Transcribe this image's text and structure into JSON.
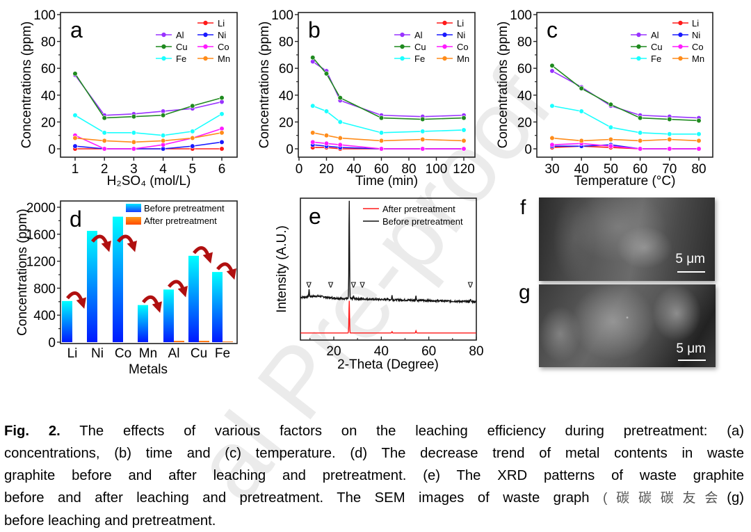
{
  "watermark": "al Pre-proof",
  "legend_series": [
    {
      "name": "Li",
      "color": "#ff1a1a"
    },
    {
      "name": "Ni",
      "color": "#1a1aff"
    },
    {
      "name": "Co",
      "color": "#ff1aff"
    },
    {
      "name": "Mn",
      "color": "#ff8c1a"
    },
    {
      "name": "Al",
      "color": "#9933ff"
    },
    {
      "name": "Cu",
      "color": "#1f8a1f"
    },
    {
      "name": "Fe",
      "color": "#1affff"
    }
  ],
  "chart_data": [
    {
      "id": "a",
      "panel_label": "a",
      "type": "line",
      "xlabel": "H₂SO₄ (mol/L)",
      "ylabel": "Concentrations (ppm)",
      "x": [
        1,
        2,
        3,
        4,
        5,
        6
      ],
      "xticks": [
        "1",
        "2",
        "3",
        "4",
        "5",
        "6"
      ],
      "xlim": [
        0.9,
        6.3
      ],
      "ylim": [
        -5,
        100
      ],
      "yticks": [
        "0",
        "20",
        "40",
        "60",
        "80",
        "100"
      ],
      "series": [
        {
          "name": "Li",
          "values": [
            0,
            0,
            0,
            0,
            0,
            0
          ]
        },
        {
          "name": "Ni",
          "values": [
            2,
            0,
            0,
            0,
            2,
            5
          ]
        },
        {
          "name": "Co",
          "values": [
            10,
            0,
            0,
            3,
            8,
            15
          ]
        },
        {
          "name": "Mn",
          "values": [
            8,
            6,
            5,
            6,
            8,
            12
          ]
        },
        {
          "name": "Al",
          "values": [
            55,
            25,
            26,
            28,
            30,
            35
          ]
        },
        {
          "name": "Cu",
          "values": [
            56,
            23,
            24,
            25,
            32,
            38
          ]
        },
        {
          "name": "Fe",
          "values": [
            25,
            12,
            12,
            10,
            13,
            26
          ]
        }
      ]
    },
    {
      "id": "b",
      "panel_label": "b",
      "type": "line",
      "xlabel": "Time (min)",
      "ylabel": "Concentrations (ppm)",
      "x": [
        10,
        20,
        30,
        60,
        90,
        120
      ],
      "xticks": [
        "0",
        "20",
        "40",
        "60",
        "80",
        "100",
        "120"
      ],
      "xlim": [
        0,
        128
      ],
      "ylim": [
        -5,
        100
      ],
      "yticks": [
        "0",
        "20",
        "40",
        "60",
        "80",
        "100"
      ],
      "series": [
        {
          "name": "Li",
          "values": [
            1,
            1,
            0,
            0,
            0,
            0
          ]
        },
        {
          "name": "Ni",
          "values": [
            3,
            2,
            1,
            0,
            0,
            0
          ]
        },
        {
          "name": "Co",
          "values": [
            5,
            4,
            3,
            0,
            0,
            0
          ]
        },
        {
          "name": "Mn",
          "values": [
            12,
            10,
            8,
            6,
            7,
            6
          ]
        },
        {
          "name": "Al",
          "values": [
            65,
            58,
            36,
            25,
            24,
            25
          ]
        },
        {
          "name": "Cu",
          "values": [
            68,
            56,
            38,
            23,
            22,
            23
          ]
        },
        {
          "name": "Fe",
          "values": [
            32,
            28,
            20,
            12,
            13,
            14
          ]
        }
      ]
    },
    {
      "id": "c",
      "panel_label": "c",
      "type": "line",
      "xlabel": "Temperature (°C)",
      "ylabel": "Concentrations (ppm)",
      "x": [
        30,
        40,
        50,
        60,
        70,
        80
      ],
      "xticks": [
        "30",
        "40",
        "50",
        "60",
        "70",
        "80"
      ],
      "xlim": [
        26,
        86
      ],
      "ylim": [
        -5,
        100
      ],
      "yticks": [
        "0",
        "20",
        "40",
        "60",
        "80",
        "100"
      ],
      "series": [
        {
          "name": "Li",
          "values": [
            1,
            2,
            1,
            0,
            0,
            0
          ]
        },
        {
          "name": "Ni",
          "values": [
            2,
            2,
            3,
            0,
            0,
            0
          ]
        },
        {
          "name": "Co",
          "values": [
            3,
            4,
            2,
            0,
            0,
            0
          ]
        },
        {
          "name": "Mn",
          "values": [
            8,
            6,
            7,
            6,
            7,
            6
          ]
        },
        {
          "name": "Al",
          "values": [
            58,
            46,
            32,
            25,
            24,
            23
          ]
        },
        {
          "name": "Cu",
          "values": [
            62,
            45,
            33,
            23,
            22,
            21
          ]
        },
        {
          "name": "Fe",
          "values": [
            32,
            28,
            16,
            12,
            11,
            11
          ]
        }
      ]
    },
    {
      "id": "d",
      "panel_label": "d",
      "type": "bar",
      "xlabel": "Metals",
      "ylabel": "Concentrations (ppm)",
      "categories": [
        "Li",
        "Ni",
        "Co",
        "Mn",
        "Al",
        "Cu",
        "Fe"
      ],
      "ylim": [
        -20,
        2000
      ],
      "yticks": [
        "0",
        "400",
        "800",
        "1200",
        "1600",
        "2000"
      ],
      "series": [
        {
          "name": "Before pretreatment",
          "values": [
            610,
            1650,
            1860,
            550,
            780,
            1280,
            1040
          ]
        },
        {
          "name": "After pretreatment",
          "values": [
            0,
            0,
            0,
            0,
            20,
            20,
            10
          ]
        }
      ]
    },
    {
      "id": "e",
      "panel_label": "e",
      "type": "line",
      "xlabel": "2-Theta (Degree)",
      "ylabel": "Intensity (A.U.)",
      "xlim": [
        6,
        80
      ],
      "xticks": [
        "20",
        "40",
        "60",
        "80"
      ],
      "ylim": [
        0,
        1
      ],
      "marker_symbol": "∇",
      "marker_positions": [
        9.5,
        18.7,
        28.3,
        32,
        77.5
      ],
      "series": [
        {
          "name": "After pretreatment",
          "color": "#ff1a1a",
          "baseline": [
            0.05,
            0.05
          ],
          "peaks": [
            [
              26.5,
              0.23
            ],
            [
              44.5,
              0.01
            ],
            [
              54.6,
              0.015
            ]
          ]
        },
        {
          "name": "Before pretreatment",
          "color": "#111111",
          "baseline": [
            0.3,
            0.27
          ],
          "peaks": [
            [
              26.5,
              0.7
            ],
            [
              9.6,
              0.05
            ],
            [
              44.5,
              0.03
            ],
            [
              42.5,
              0.015
            ],
            [
              54.6,
              0.035
            ],
            [
              77.5,
              0.02
            ],
            [
              28.3,
              0.02
            ]
          ]
        }
      ]
    }
  ],
  "sem": {
    "f": {
      "label": "f",
      "scale": "5 μm"
    },
    "g": {
      "label": "g",
      "scale": "5 μm"
    }
  },
  "caption": {
    "label": "Fig. 2.",
    "lines": [
      " The effects of various factors on the leaching efficiency during pretreatment: (a)",
      "concentrations, (b) time and (c) temperature. (d) The decrease trend of metal contents in waste",
      "graphite before and after leaching and pretreatment. (e) The XRD patterns of waste graphite",
      "before and after leaching and pretreatment. The SEM images of waste graph",
      "before leaching and pretreatment."
    ],
    "overlay": "(碳碳碳友会",
    "line4_end": "(g)"
  }
}
